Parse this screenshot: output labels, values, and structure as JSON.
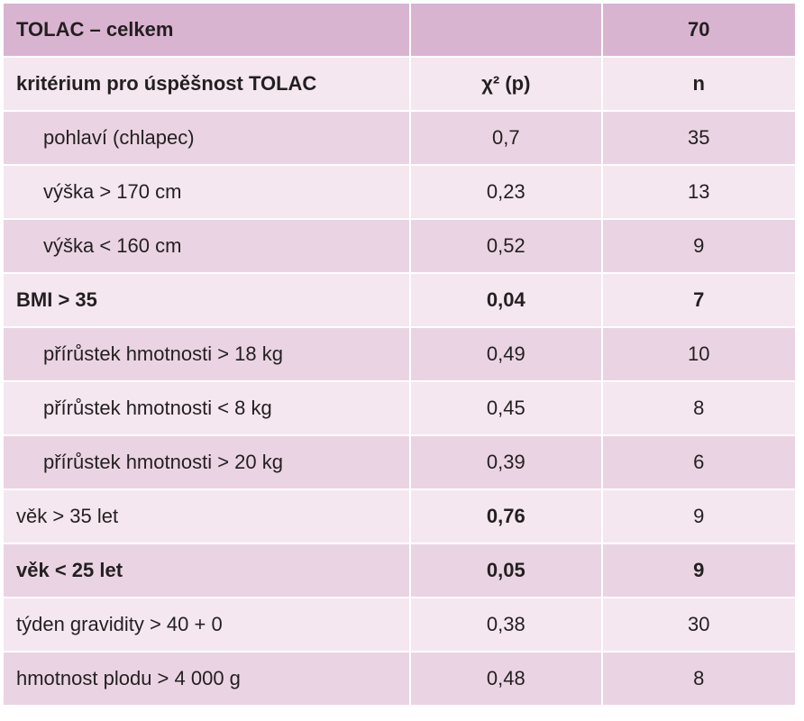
{
  "table": {
    "header": {
      "label": "TOLAC – celkem",
      "n": "70"
    },
    "columns": [
      "kritérium pro úspěšnost TOLAC",
      "χ² (p)",
      "n"
    ],
    "rows": [
      [
        "pohlaví (chlapec)",
        "0,7",
        "35"
      ],
      [
        "výška > 170 cm",
        "0,23",
        "13"
      ],
      [
        "výška < 160 cm",
        "0,52",
        "9"
      ],
      [
        "BMI > 35",
        "0,04",
        "7"
      ],
      [
        "přírůstek hmotnosti > 18 kg",
        "0,49",
        "10"
      ],
      [
        "přírůstek hmotnosti < 8 kg",
        "0,45",
        "8"
      ],
      [
        "přírůstek hmotnosti > 20 kg",
        "0,39",
        "6"
      ],
      [
        "věk > 35 let",
        "0,76",
        "9"
      ],
      [
        "věk < 25 let",
        "0,05",
        "9"
      ],
      [
        "týden gravidity > 40 + 0",
        "0,38",
        "30"
      ],
      [
        "hmotnost plodu > 4 000 g",
        "0,48",
        "8"
      ]
    ]
  }
}
